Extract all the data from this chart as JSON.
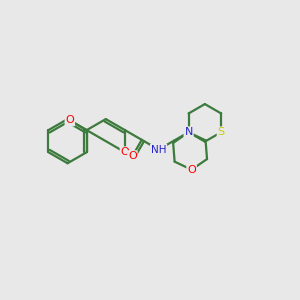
{
  "background_color": "#e8e8e8",
  "bond_color": "#3d7a3d",
  "bond_width": 1.6,
  "atom_colors": {
    "O": "#ff0000",
    "N": "#2222cc",
    "S": "#cccc00",
    "C": "#3d7a3d"
  },
  "figsize": [
    3.0,
    3.0
  ],
  "dpi": 100,
  "BL": 0.75
}
